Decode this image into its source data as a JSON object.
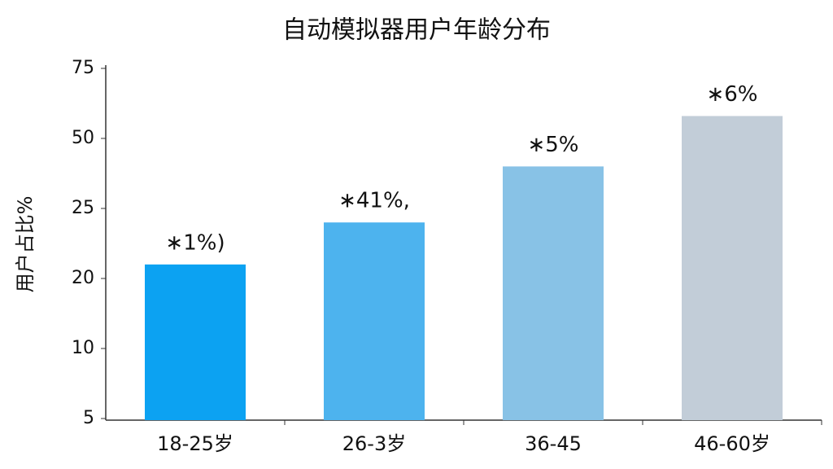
{
  "chart_data": {
    "type": "bar",
    "title": "自动模拟器用户年龄分布",
    "ylabel": "用户占比%",
    "categories": [
      "18-25岁",
      "26-3岁",
      "36-45",
      "46-60岁"
    ],
    "values": [
      21,
      24,
      40,
      58
    ],
    "colors": [
      "#0ca2f2",
      "#4db3ee",
      "#88c2e6",
      "#c2cdd8"
    ],
    "annotations": [
      "∗1%)",
      "∗41%,",
      "∗5%",
      "∗6%"
    ],
    "ylim": [
      5,
      75
    ],
    "yticks": [
      5,
      10,
      20,
      25,
      50,
      75
    ]
  }
}
